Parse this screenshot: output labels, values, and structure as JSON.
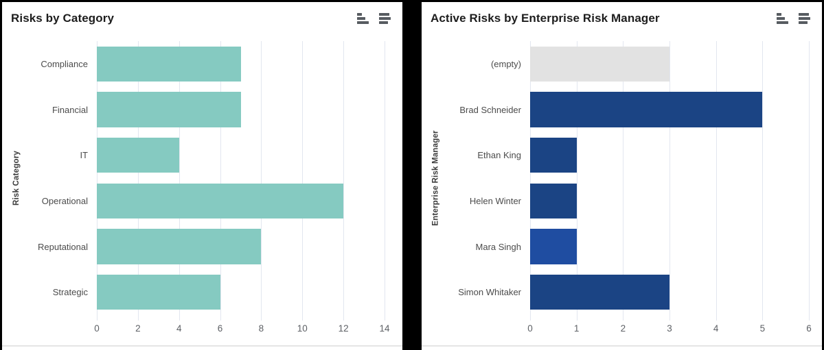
{
  "page": {
    "background_color": "#000000",
    "card_color": "#ffffff",
    "gridline_color": "#e2e6ef",
    "bottom_border_color": "#e5e5e5"
  },
  "chart_data": [
    {
      "type": "bar",
      "orientation": "horizontal",
      "title": "Risks by Category",
      "xlabel": "",
      "ylabel": "Risk Category",
      "categories": [
        "Compliance",
        "Financial",
        "IT",
        "Operational",
        "Reputational",
        "Strategic"
      ],
      "values": [
        7,
        7,
        4,
        12,
        8,
        6
      ],
      "bar_colors": [
        "#85CAC1",
        "#85CAC1",
        "#85CAC1",
        "#85CAC1",
        "#85CAC1",
        "#85CAC1"
      ],
      "xlim": [
        0,
        14
      ],
      "xticks": [
        0,
        2,
        4,
        6,
        8,
        10,
        12,
        14
      ],
      "grid": true,
      "legend": "none",
      "header_icons": [
        {
          "name": "column-chart-toggle-icon"
        },
        {
          "name": "horizontal-bar-chart-toggle-icon"
        }
      ]
    },
    {
      "type": "bar",
      "orientation": "horizontal",
      "title": "Active Risks by Enterprise Risk Manager",
      "xlabel": "",
      "ylabel": "Enterprise Risk Manager",
      "categories": [
        "(empty)",
        "Brad Schneider",
        "Ethan King",
        "Helen Winter",
        "Mara Singh",
        "Simon Whitaker"
      ],
      "values": [
        3,
        5,
        1,
        1,
        1,
        3
      ],
      "bar_colors": [
        "#E2E2E2",
        "#1B4484",
        "#1B4484",
        "#1B4484",
        "#1F4DA1",
        "#1B4484"
      ],
      "xlim": [
        0,
        6
      ],
      "xticks": [
        0,
        1,
        2,
        3,
        4,
        5,
        6
      ],
      "grid": true,
      "legend": "none",
      "header_icons": [
        {
          "name": "column-chart-toggle-icon"
        },
        {
          "name": "horizontal-bar-chart-toggle-icon"
        }
      ]
    }
  ]
}
